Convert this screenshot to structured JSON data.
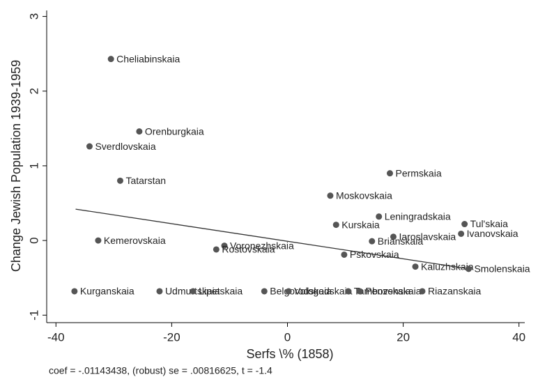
{
  "chart_data": {
    "type": "scatter",
    "x_label": "Serfs \\% (1858)",
    "y_label": "Change Jewish Population 1939-1959",
    "note": "coef = -.01143438, (robust) se = .00816625, t = -1.4",
    "xlim": [
      -41.6,
      41
    ],
    "ylim": [
      -1.1,
      3.08
    ],
    "xticks": [
      -40,
      -20,
      0,
      20,
      40
    ],
    "yticks": [
      -1,
      0,
      1,
      2,
      3
    ],
    "color": "#555555",
    "line_color": "#333333",
    "labels": [
      "Cheliabinskaia",
      "Orenburgkaia",
      "Sverdlovskaia",
      "Tatarstan",
      "Kemerovskaia",
      "Permskaia",
      "Moskovskaia",
      "Leningradskaia",
      "Kurskaia",
      "Tul'skaia",
      "Iaroslavskaia",
      "Ivanovskaia",
      "Brianskaia",
      "Voronezhskaia",
      "Rostovskaia",
      "Pskovskaia",
      "Kaluzhskaia",
      "Smolenskaia",
      "Kurganskaia",
      "Udmurtskaia",
      "Lipetskaia",
      "Belgorodskaia",
      "Vologodskaia",
      "Tambovskaia",
      "Penzenskaia",
      "Riazanskaia"
    ],
    "x": [
      -30.5,
      -25.6,
      -34.2,
      -28.9,
      -32.7,
      17.7,
      7.4,
      15.8,
      8.4,
      30.6,
      18.3,
      30.0,
      14.6,
      -10.9,
      -12.3,
      9.8,
      22.1,
      31.3,
      -36.8,
      -22.1,
      -16.3,
      -4.0,
      0.2,
      10.5,
      12.5,
      23.3
    ],
    "y": [
      2.43,
      1.46,
      1.26,
      0.8,
      0.0,
      0.9,
      0.6,
      0.32,
      0.21,
      0.22,
      0.05,
      0.09,
      -0.01,
      -0.07,
      -0.12,
      -0.19,
      -0.35,
      -0.38,
      -0.68,
      -0.68,
      -0.68,
      -0.68,
      -0.68,
      -0.68,
      -0.68,
      -0.68
    ],
    "fit": {
      "x": [
        -36.6,
        30.6
      ],
      "y": [
        0.42,
        -0.37
      ]
    }
  }
}
